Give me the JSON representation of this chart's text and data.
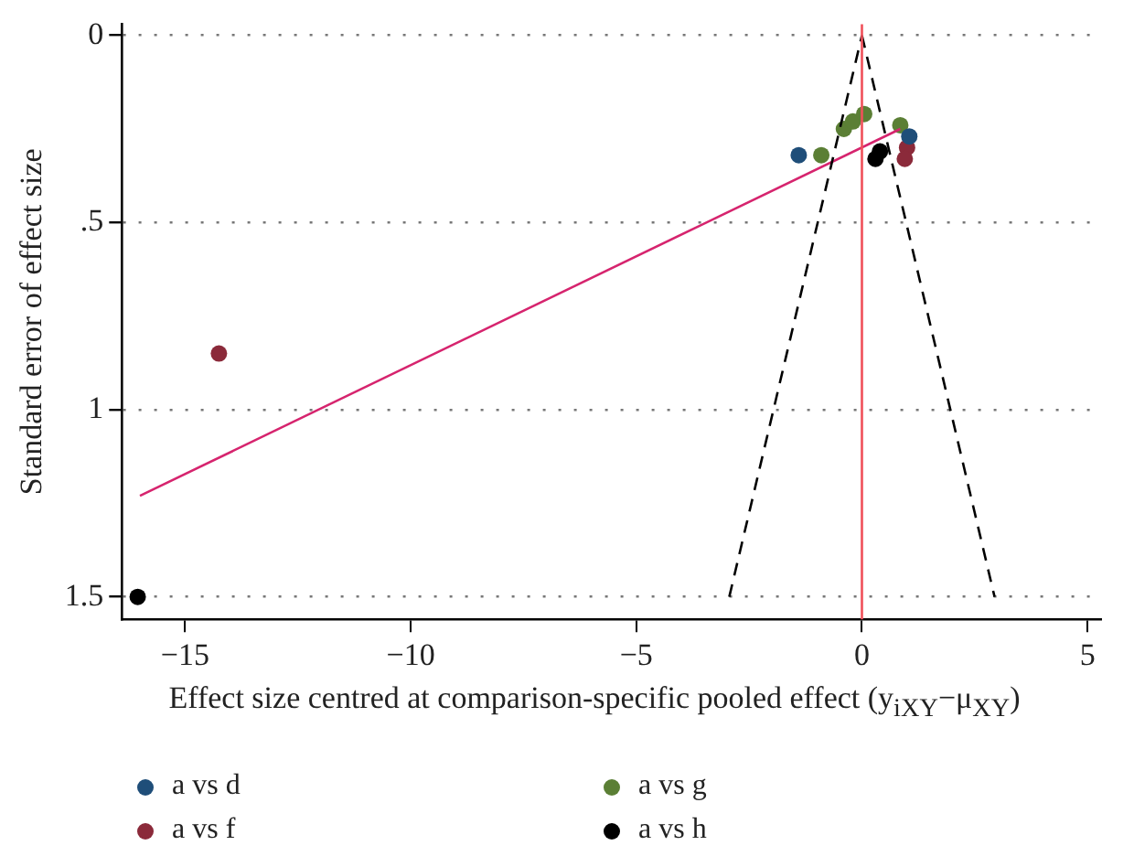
{
  "chart_data": {
    "type": "scatter",
    "ylabel": "Standard error of effect size",
    "xlabel": "Effect size centred at comparison-specific pooled effect (y$_{iXY}$−μ$_{XY}$)",
    "xlim": [
      -16.4,
      5.3
    ],
    "xticks": [
      -15,
      -10,
      -5,
      0,
      5
    ],
    "ylim": [
      1.56,
      -0.03
    ],
    "yticks": [
      0,
      {
        "value": 0.5,
        "label": ".5"
      },
      1,
      1.5
    ],
    "grid": "y",
    "legend": "bottom",
    "marker": "circle",
    "ref_lines": [
      {
        "axis": "x",
        "value": 0,
        "color": "#f0505a"
      }
    ],
    "series": [
      {
        "type": "line",
        "color": "#000000",
        "line_style": "dashed",
        "marker": "none",
        "x": [
          -2.94,
          0
        ],
        "values": [
          1.5,
          0
        ]
      },
      {
        "type": "line",
        "color": "#000000",
        "line_style": "dashed",
        "marker": "none",
        "x": [
          0,
          2.94
        ],
        "values": [
          0,
          1.5
        ]
      },
      {
        "type": "line",
        "color": "#d6246e",
        "line_style": "solid",
        "marker": "none",
        "x": [
          -16,
          0.85
        ],
        "values": [
          1.23,
          0.25
        ]
      },
      {
        "name": "a vs d",
        "color": "#1f4e79",
        "x": [
          -1.4,
          1.05
        ],
        "values": [
          0.32,
          0.27
        ]
      },
      {
        "name": "a vs f",
        "color": "#8b2a3a",
        "x": [
          -14.25,
          1.0,
          0.95
        ],
        "values": [
          0.85,
          0.3,
          0.33
        ]
      },
      {
        "name": "a vs g",
        "color": "#5b7f35",
        "x": [
          -0.9,
          -0.4,
          -0.2,
          0.05,
          0.85
        ],
        "values": [
          0.32,
          0.25,
          0.23,
          0.21,
          0.24
        ]
      },
      {
        "name": "a vs h",
        "color": "#000000",
        "x": [
          -16.05,
          0.3,
          0.4
        ],
        "values": [
          1.5,
          0.33,
          0.31
        ]
      }
    ]
  }
}
